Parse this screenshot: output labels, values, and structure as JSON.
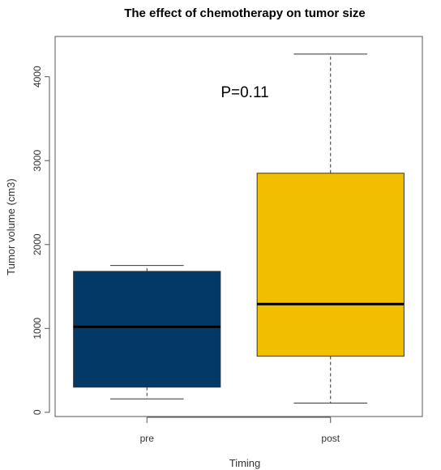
{
  "chart_data": {
    "type": "box",
    "title": "The effect of chemotherapy on tumor size",
    "xlabel": "Timing",
    "ylabel": "Tumor volume (cm3)",
    "categories": [
      "pre",
      "post"
    ],
    "ylim": [
      -50,
      4480
    ],
    "yticks": [
      0,
      1000,
      2000,
      3000,
      4000
    ],
    "yticklabels": [
      "0",
      "1000",
      "2000",
      "3000",
      "4000"
    ],
    "annotation": "P=0.11",
    "boxes": [
      {
        "category": "pre",
        "min": 160,
        "q1": 300,
        "median": 1020,
        "q3": 1680,
        "max": 1750,
        "color": "#023a67"
      },
      {
        "category": "post",
        "min": 110,
        "q1": 670,
        "median": 1290,
        "q3": 2850,
        "max": 4270,
        "color": "#f0c000"
      }
    ],
    "grid": false,
    "legend": "none"
  }
}
